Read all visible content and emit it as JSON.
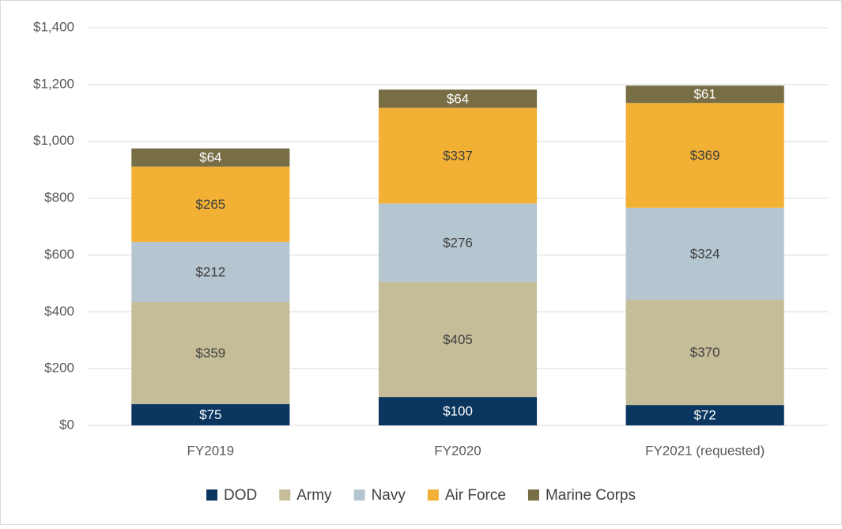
{
  "chart_data": {
    "type": "stacked_bar",
    "categories": [
      "FY2019",
      "FY2020",
      "FY2021 (requested)"
    ],
    "series": [
      {
        "name": "DOD",
        "color": "#0b3660",
        "values": [
          75,
          100,
          72
        ],
        "value_labels": [
          "$75",
          "$100",
          "$72"
        ]
      },
      {
        "name": "Army",
        "color": "#c4bd97",
        "values": [
          359,
          405,
          370
        ],
        "value_labels": [
          "$359",
          "$405",
          "$370"
        ]
      },
      {
        "name": "Navy",
        "color": "#b5c6d0",
        "values": [
          212,
          276,
          324
        ],
        "value_labels": [
          "$212",
          "$276",
          "$324"
        ]
      },
      {
        "name": "Air Force",
        "color": "#f2b134",
        "values": [
          265,
          337,
          369
        ],
        "value_labels": [
          "$265",
          "$337",
          "$369"
        ]
      },
      {
        "name": "Marine Corps",
        "color": "#786e46",
        "values": [
          64,
          64,
          61
        ],
        "value_labels": [
          "$64",
          "$64",
          "$61"
        ]
      }
    ],
    "ylim": [
      0,
      1400
    ],
    "yticks": [
      {
        "value": 0,
        "label": "$0"
      },
      {
        "value": 200,
        "label": "$200"
      },
      {
        "value": 400,
        "label": "$400"
      },
      {
        "value": 600,
        "label": "$600"
      },
      {
        "value": 800,
        "label": "$800"
      },
      {
        "value": 1000,
        "label": "$1,000"
      },
      {
        "value": 1200,
        "label": "$1,200"
      },
      {
        "value": 1400,
        "label": "$1,400"
      }
    ],
    "grid": true,
    "legend": "bottom"
  }
}
